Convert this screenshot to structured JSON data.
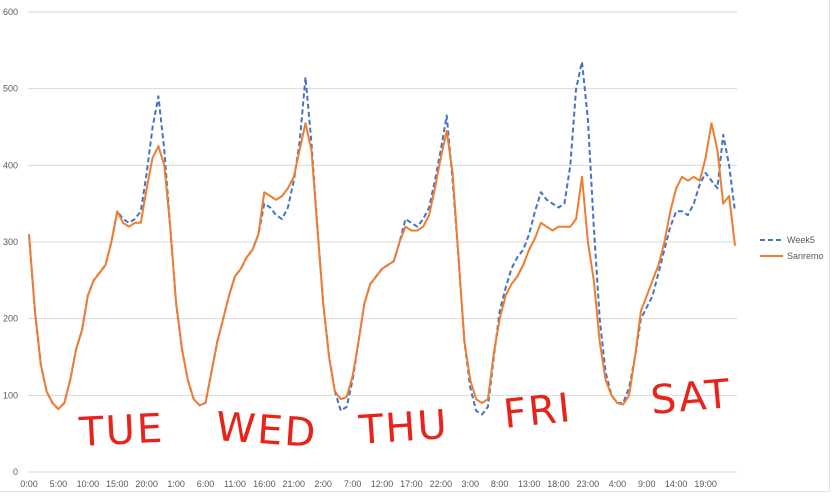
{
  "chart_data": {
    "type": "line",
    "title": "",
    "xlabel": "",
    "ylabel": "",
    "ylim": [
      0,
      600
    ],
    "yticks": [
      0,
      100,
      200,
      300,
      400,
      500,
      600
    ],
    "grid": true,
    "legend_position": "right",
    "xrange_hours": [
      0,
      120
    ],
    "xtick_labels": [
      "0:00",
      "5:00",
      "10:00",
      "15:00",
      "20:00",
      "1:00",
      "6:00",
      "11:00",
      "16:00",
      "21:00",
      "2:00",
      "7:00",
      "12:00",
      "17:00",
      "22:00",
      "3:00",
      "8:00",
      "13:00",
      "18:00",
      "23:00",
      "4:00",
      "9:00",
      "14:00",
      "19:00"
    ],
    "x_hours_note_free": true,
    "series": [
      {
        "name": "Week5",
        "color": "#4472c4",
        "style": "dashed",
        "values": [
          310,
          210,
          140,
          105,
          90,
          82,
          90,
          120,
          160,
          185,
          230,
          250,
          260,
          270,
          300,
          340,
          330,
          325,
          330,
          340,
          390,
          450,
          490,
          420,
          320,
          220,
          160,
          120,
          95,
          87,
          90,
          130,
          170,
          200,
          230,
          255,
          265,
          280,
          290,
          310,
          350,
          345,
          335,
          330,
          345,
          380,
          430,
          515,
          430,
          320,
          220,
          150,
          105,
          80,
          85,
          120,
          170,
          220,
          245,
          255,
          265,
          270,
          275,
          300,
          330,
          325,
          320,
          330,
          345,
          380,
          420,
          465,
          380,
          280,
          170,
          110,
          80,
          75,
          85,
          150,
          210,
          240,
          265,
          280,
          290,
          310,
          340,
          365,
          355,
          350,
          345,
          350,
          400,
          500,
          535,
          460,
          320,
          200,
          130,
          100,
          90,
          90,
          110,
          150,
          200,
          215,
          230,
          260,
          290,
          320,
          340,
          340,
          335,
          350,
          375,
          390,
          380,
          370,
          440,
          400,
          340
        ]
      },
      {
        "name": "Sanremo",
        "color": "#ed7d31",
        "style": "solid",
        "values": [
          310,
          210,
          140,
          105,
          90,
          82,
          90,
          120,
          160,
          185,
          230,
          250,
          260,
          270,
          300,
          340,
          325,
          320,
          325,
          325,
          370,
          410,
          425,
          400,
          320,
          220,
          160,
          120,
          95,
          87,
          90,
          130,
          170,
          200,
          230,
          255,
          265,
          280,
          290,
          310,
          365,
          360,
          355,
          360,
          370,
          385,
          420,
          455,
          420,
          320,
          220,
          150,
          105,
          95,
          98,
          125,
          170,
          220,
          245,
          255,
          265,
          270,
          275,
          300,
          320,
          315,
          315,
          320,
          335,
          370,
          410,
          445,
          390,
          280,
          170,
          120,
          95,
          90,
          95,
          155,
          200,
          230,
          245,
          255,
          270,
          290,
          305,
          325,
          320,
          315,
          320,
          320,
          320,
          330,
          385,
          300,
          250,
          170,
          120,
          100,
          90,
          88,
          100,
          150,
          210,
          230,
          250,
          270,
          300,
          340,
          370,
          385,
          380,
          385,
          380,
          410,
          455,
          420,
          350,
          360,
          295
        ]
      }
    ],
    "annotations": [
      "TUE",
      "WED",
      "THU",
      "FRI",
      "SAT"
    ],
    "annotation_color": "#e8231a"
  }
}
